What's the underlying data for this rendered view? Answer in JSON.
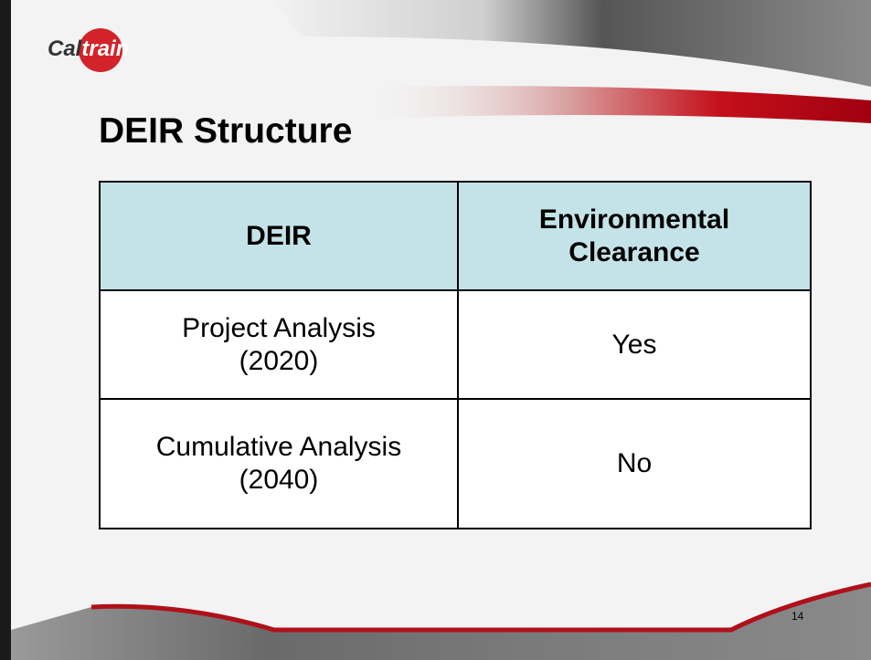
{
  "logo": {
    "left": "Cal",
    "right": "train"
  },
  "title": "DEIR Structure",
  "table": {
    "header": [
      "DEIR",
      "Environmental Clearance"
    ],
    "rows": [
      [
        "Project Analysis (2020)",
        "Yes"
      ],
      [
        "Cumulative Analysis (2040)",
        "No"
      ]
    ]
  },
  "page_number": "14"
}
